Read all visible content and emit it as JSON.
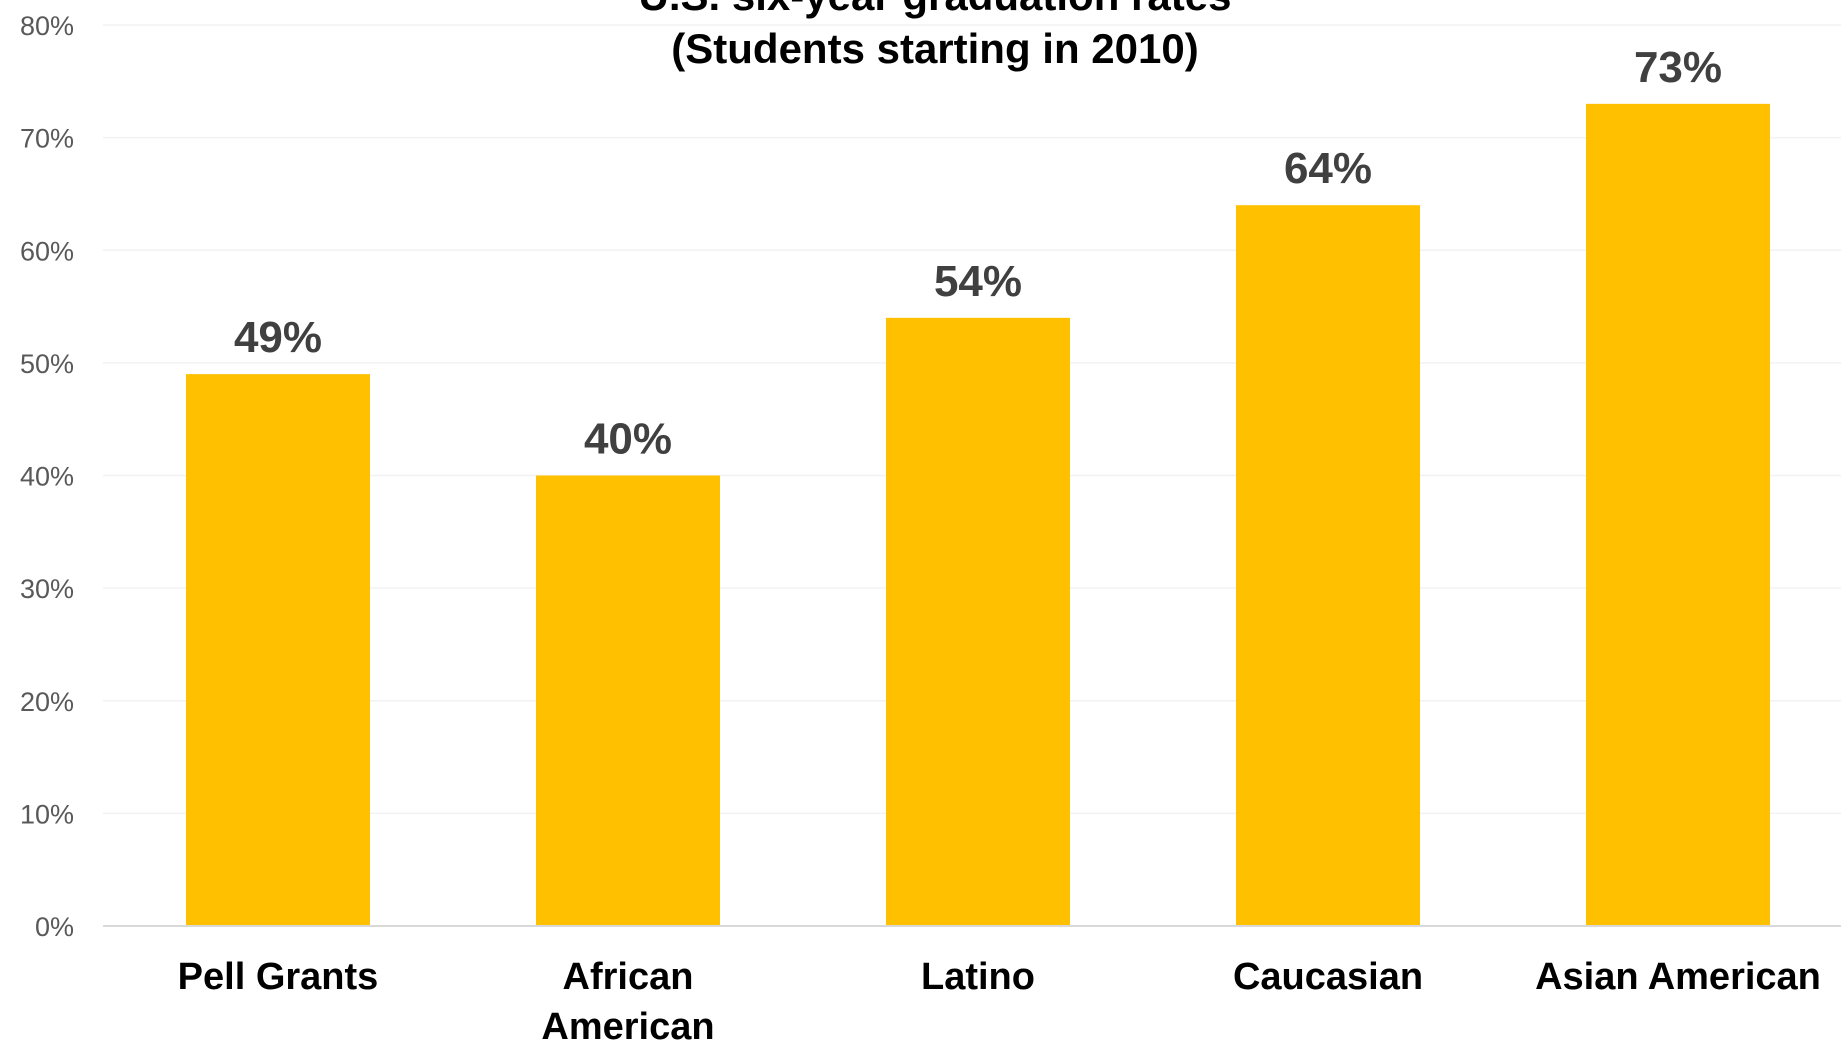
{
  "chart_data": {
    "type": "bar",
    "title_lines": [
      "U.S. six-year graduation rates",
      "(Students starting in 2010)"
    ],
    "categories": [
      [
        "Pell Grants"
      ],
      [
        "African",
        "American"
      ],
      [
        "Latino"
      ],
      [
        "Caucasian"
      ],
      [
        "Asian American"
      ]
    ],
    "values": [
      49,
      40,
      54,
      64,
      73
    ],
    "data_labels": [
      "49%",
      "40%",
      "54%",
      "64%",
      "73%"
    ],
    "ylim": [
      0,
      80
    ],
    "yticks": [
      0,
      10,
      20,
      30,
      40,
      50,
      60,
      70,
      80
    ],
    "ytick_labels": [
      "0%",
      "10%",
      "20%",
      "30%",
      "40%",
      "50%",
      "60%",
      "70%",
      "80%"
    ],
    "xlabel": "",
    "ylabel": "",
    "grid": true,
    "bar_color": "#FFC000",
    "grid_color": "#F2F2F2",
    "axis_color": "#D9D9D9"
  }
}
